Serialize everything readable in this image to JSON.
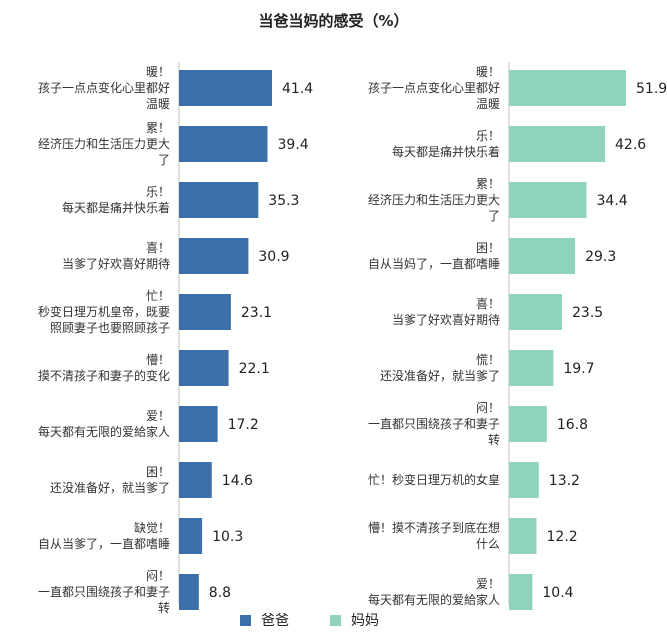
{
  "title": "当爸当妈的感受（%）",
  "colors": {
    "dad": "#3d6fa8",
    "mom": "#8fd3bf"
  },
  "legend": {
    "dad": "爸爸",
    "mom": "妈妈"
  },
  "chart_data": [
    {
      "type": "bar",
      "orientation": "horizontal",
      "series_name": "爸爸",
      "categories": [
        [
          "暖！",
          "孩子一点点变化心里都好",
          "温暖"
        ],
        [
          "累！",
          "经济压力和生活压力更大",
          "了"
        ],
        [
          "乐！",
          "每天都是痛并快乐着"
        ],
        [
          "喜！",
          "当爹了好欢喜好期待"
        ],
        [
          "忙！",
          "秒变日理万机皇帝，既要",
          "照顾妻子也要照顾孩子"
        ],
        [
          "懵！",
          "摸不清孩子和妻子的变化"
        ],
        [
          "爱！",
          "每天都有无限的爱給家人"
        ],
        [
          "困！",
          "还没准备好，就当爹了"
        ],
        [
          "缺觉！",
          "自从当爹了，一直都嗜睡"
        ],
        [
          "闷！",
          "一直都只围绕孩子和妻子",
          "转"
        ]
      ],
      "values": [
        41.4,
        39.4,
        35.3,
        30.9,
        23.1,
        22.1,
        17.2,
        14.6,
        10.3,
        8.8
      ],
      "value_labels": [
        "41.4",
        "39.4",
        "35.3",
        "30.9",
        "23.1",
        "22.1",
        "17.2",
        "14.6",
        "10.3",
        "8.8"
      ]
    },
    {
      "type": "bar",
      "orientation": "horizontal",
      "series_name": "妈妈",
      "categories": [
        [
          "暖！",
          "孩子一点点变化心里都好",
          "温暖"
        ],
        [
          "乐！",
          "每天都是痛并快乐着"
        ],
        [
          "累！",
          "经济压力和生活压力更大",
          "了"
        ],
        [
          "困！",
          "自从当妈了，一直都嗜睡"
        ],
        [
          "喜！",
          "当爹了好欢喜好期待"
        ],
        [
          "慌！",
          "还没准备好，就当爹了"
        ],
        [
          "闷！",
          "一直都只围绕孩子和妻子",
          "转"
        ],
        [
          "忙！秒变日理万机的女皇"
        ],
        [
          "懵！摸不清孩子到底在想",
          "什么"
        ],
        [
          "爱！",
          "每天都有无限的爱給家人"
        ]
      ],
      "values": [
        51.9,
        42.6,
        34.4,
        29.3,
        23.5,
        19.7,
        16.8,
        13.2,
        12.2,
        10.4
      ],
      "value_labels": [
        "51.9",
        "42.6",
        "34.4",
        "29.3",
        "23.5",
        "19.7",
        "16.8",
        "13.2",
        "12.2",
        "10.4"
      ]
    }
  ]
}
